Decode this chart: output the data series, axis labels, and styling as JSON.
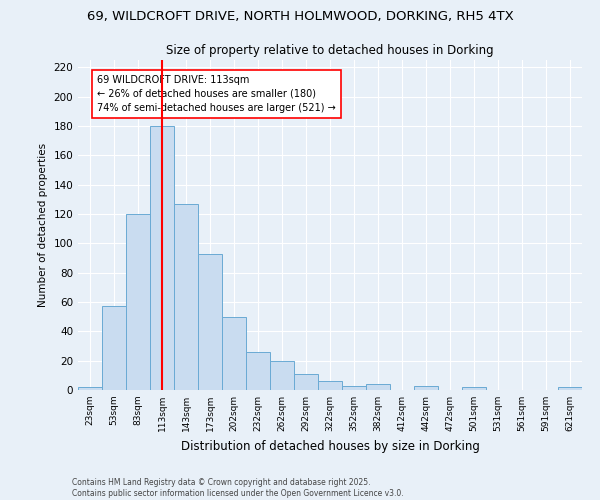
{
  "title_line1": "69, WILDCROFT DRIVE, NORTH HOLMWOOD, DORKING, RH5 4TX",
  "title_line2": "Size of property relative to detached houses in Dorking",
  "xlabel": "Distribution of detached houses by size in Dorking",
  "ylabel": "Number of detached properties",
  "bar_labels": [
    "23sqm",
    "53sqm",
    "83sqm",
    "113sqm",
    "143sqm",
    "173sqm",
    "202sqm",
    "232sqm",
    "262sqm",
    "292sqm",
    "322sqm",
    "352sqm",
    "382sqm",
    "412sqm",
    "442sqm",
    "472sqm",
    "501sqm",
    "531sqm",
    "561sqm",
    "591sqm",
    "621sqm"
  ],
  "bar_values": [
    2,
    57,
    120,
    180,
    127,
    93,
    50,
    26,
    20,
    11,
    6,
    3,
    4,
    0,
    3,
    0,
    2,
    0,
    0,
    0,
    2
  ],
  "bar_color": "#c9dcf0",
  "bar_edge_color": "#6aaad4",
  "property_line_x": 3,
  "property_line_color": "red",
  "annotation_text": "69 WILDCROFT DRIVE: 113sqm\n← 26% of detached houses are smaller (180)\n74% of semi-detached houses are larger (521) →",
  "annotation_box_color": "white",
  "annotation_box_edge": "red",
  "ylim": [
    0,
    225
  ],
  "yticks": [
    0,
    20,
    40,
    60,
    80,
    100,
    120,
    140,
    160,
    180,
    200,
    220
  ],
  "footer": "Contains HM Land Registry data © Crown copyright and database right 2025.\nContains public sector information licensed under the Open Government Licence v3.0.",
  "bg_color": "#e8f0f8",
  "plot_bg_color": "#e8f0f8"
}
